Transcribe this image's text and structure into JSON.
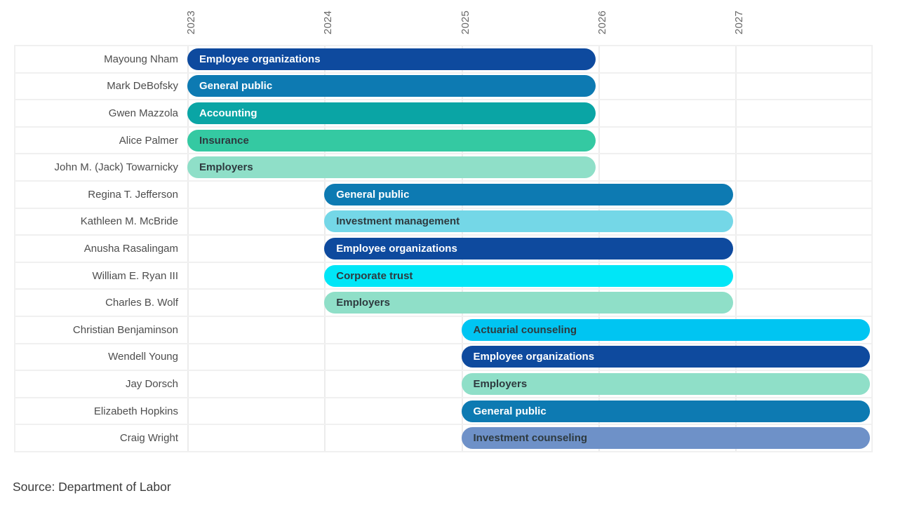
{
  "chart_data": {
    "type": "gantt",
    "title": "",
    "x_axis": {
      "ticks": [
        "2023",
        "2024",
        "2025",
        "2026",
        "2027"
      ],
      "range": [
        2022.75,
        2028.02
      ],
      "grid": true,
      "tick_label_rotation_deg": -90
    },
    "rows": [
      {
        "name": "Mayoung Nham",
        "label": "Employee organizations",
        "start": 2023,
        "end": 2026,
        "color": "#0e4a9e",
        "text": "light"
      },
      {
        "name": "Mark DeBofsky",
        "label": "General public",
        "start": 2023,
        "end": 2026,
        "color": "#0d7ab2",
        "text": "light"
      },
      {
        "name": "Gwen Mazzola",
        "label": "Accounting",
        "start": 2023,
        "end": 2026,
        "color": "#0aa5a5",
        "text": "light"
      },
      {
        "name": "Alice Palmer",
        "label": "Insurance",
        "start": 2023,
        "end": 2026,
        "color": "#34c9a2",
        "text": "dark"
      },
      {
        "name": "John M. (Jack) Towarnicky",
        "label": "Employers",
        "start": 2023,
        "end": 2026,
        "color": "#8fdfc8",
        "text": "dark"
      },
      {
        "name": "Regina T. Jefferson",
        "label": "General public",
        "start": 2024,
        "end": 2027,
        "color": "#0d7ab2",
        "text": "light"
      },
      {
        "name": "Kathleen M. McBride",
        "label": "Investment management",
        "start": 2024,
        "end": 2027,
        "color": "#74d7e7",
        "text": "dark"
      },
      {
        "name": "Anusha Rasalingam",
        "label": "Employee organizations",
        "start": 2024,
        "end": 2027,
        "color": "#0e4a9e",
        "text": "light"
      },
      {
        "name": "William E. Ryan III",
        "label": "Corporate trust",
        "start": 2024,
        "end": 2027,
        "color": "#00e6f7",
        "text": "dark"
      },
      {
        "name": "Charles B. Wolf",
        "label": "Employers",
        "start": 2024,
        "end": 2027,
        "color": "#8fdfc8",
        "text": "dark"
      },
      {
        "name": "Christian Benjaminson",
        "label": "Actuarial counseling",
        "start": 2025,
        "end": 2028,
        "color": "#00c5f2",
        "text": "dark"
      },
      {
        "name": "Wendell Young",
        "label": "Employee organizations",
        "start": 2025,
        "end": 2028,
        "color": "#0e4a9e",
        "text": "light"
      },
      {
        "name": "Jay Dorsch",
        "label": "Employers",
        "start": 2025,
        "end": 2028,
        "color": "#8fdfc8",
        "text": "dark"
      },
      {
        "name": "Elizabeth Hopkins",
        "label": "General public",
        "start": 2025,
        "end": 2028,
        "color": "#0d7ab2",
        "text": "light"
      },
      {
        "name": "Craig Wright",
        "label": "Investment counseling",
        "start": 2025,
        "end": 2028,
        "color": "#6e91c8",
        "text": "dark"
      }
    ],
    "colors": {
      "light_text": "#ffffff",
      "dark_text": "#2e3a3f",
      "grid": "#ececec",
      "row_border": "#f0f0f0",
      "name_text": "#4d4d4d",
      "tick_text": "#696969"
    },
    "legend": false,
    "source": "Source: Department of Labor"
  }
}
